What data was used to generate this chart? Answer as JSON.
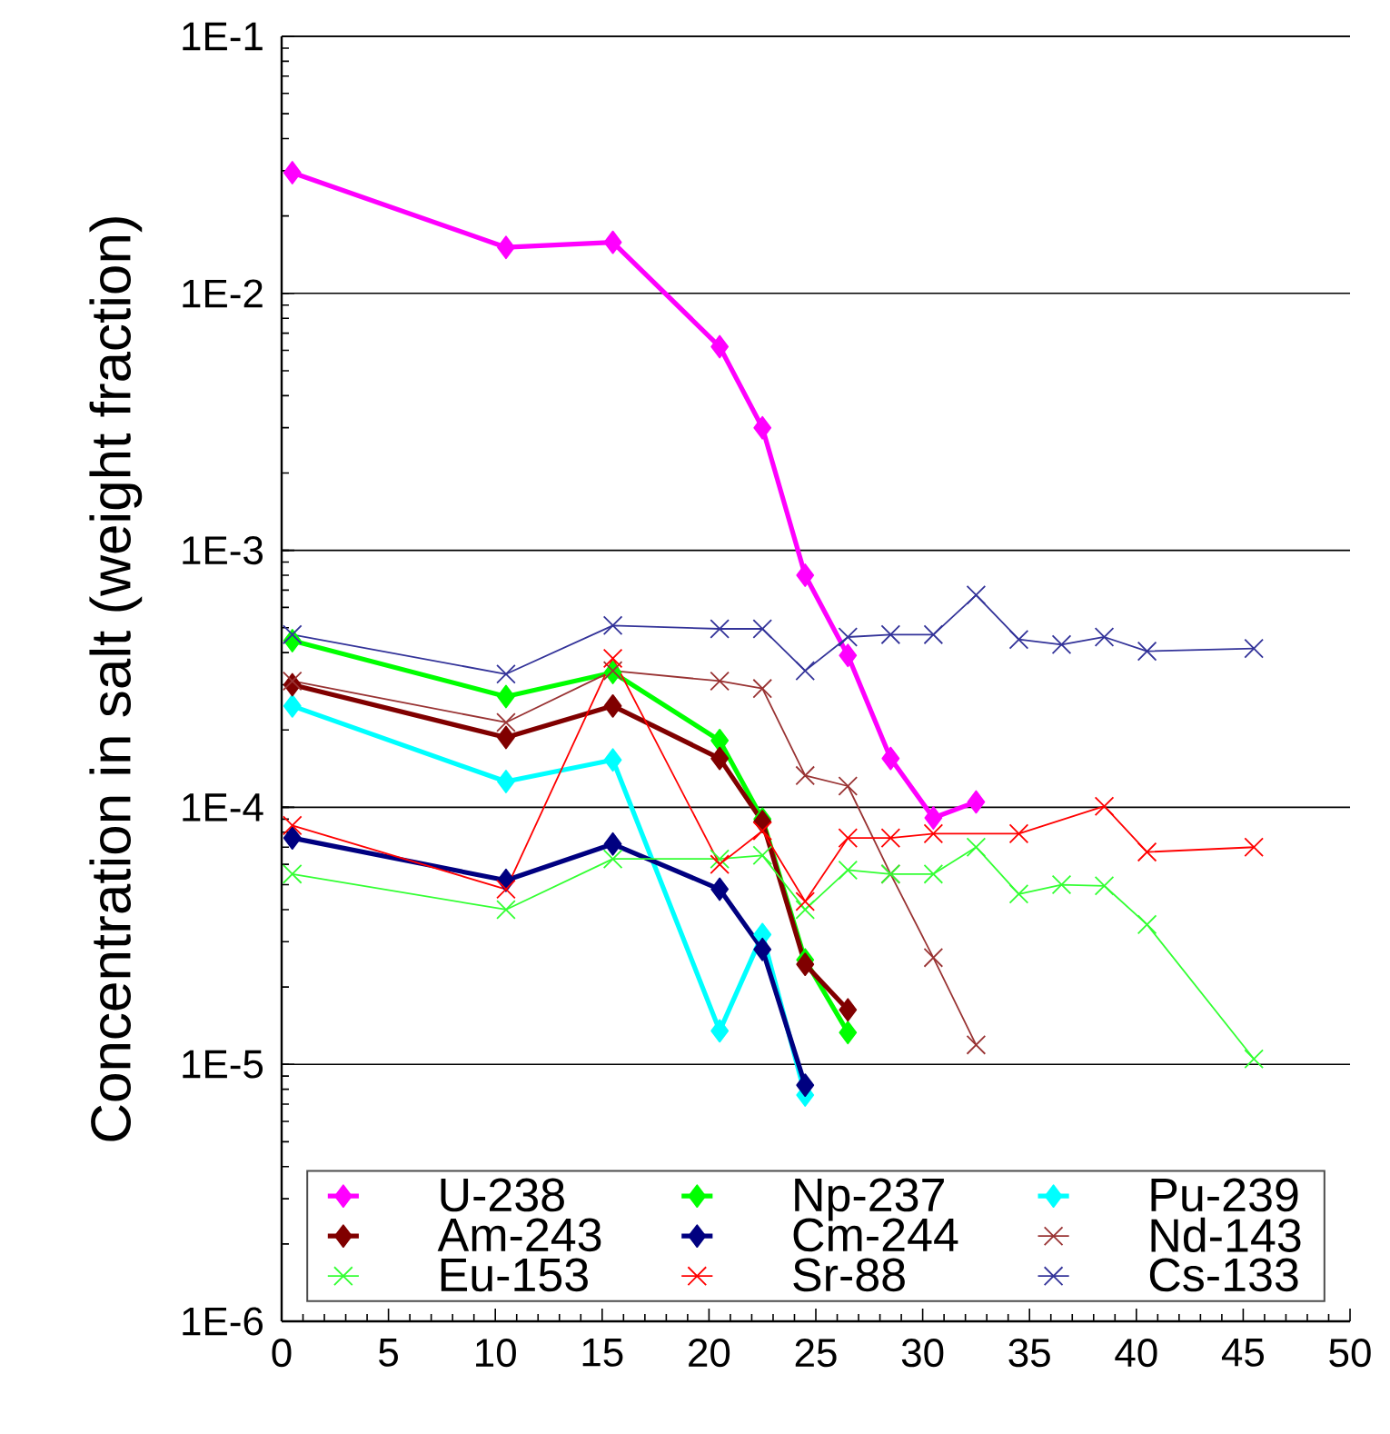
{
  "chart_data": {
    "type": "line",
    "ylabel": "Concentration in salt (weight fraction)",
    "log": "y",
    "grid": "y",
    "legend": "bottom",
    "xlim": [
      0,
      50
    ],
    "xticks": [
      0,
      5,
      10,
      15,
      20,
      25,
      30,
      35,
      40,
      45,
      50
    ],
    "ylim": [
      1e-06,
      0.1
    ],
    "yticks": [
      {
        "value": 1e-06,
        "label": "1E-6"
      },
      {
        "value": 1e-05,
        "label": "1E-5"
      },
      {
        "value": 0.0001,
        "label": "1E-4"
      },
      {
        "value": 0.001,
        "label": "1E-3"
      },
      {
        "value": 0.01,
        "label": "1E-2"
      },
      {
        "value": 0.1,
        "label": "1E-1"
      }
    ],
    "series": [
      {
        "name": "U-238",
        "color": "#ff00ff",
        "marker": "diamond",
        "x": [
          0.5,
          10.5,
          15.5,
          20.5,
          22.5,
          24.5,
          26.5,
          28.5,
          30.5,
          32.5
        ],
        "values": [
          0.0295,
          0.0151,
          0.0158,
          0.0062,
          0.003,
          0.0008,
          0.00039,
          0.000155,
          9.1e-05,
          0.000105
        ]
      },
      {
        "name": "Np-237",
        "color": "#00ff00",
        "marker": "diamond",
        "x": [
          0.5,
          10.5,
          15.5,
          20.5,
          22.5,
          24.5,
          26.5
        ],
        "values": [
          0.000445,
          0.00027,
          0.000335,
          0.000182,
          9e-05,
          2.55e-05,
          1.33e-05
        ]
      },
      {
        "name": "Pu-239",
        "color": "#00ffff",
        "marker": "diamond",
        "x": [
          0.5,
          10.5,
          15.5,
          20.5,
          22.5,
          24.5
        ],
        "values": [
          0.000248,
          0.000126,
          0.000153,
          1.35e-05,
          3.2e-05,
          7.6e-06
        ]
      },
      {
        "name": "Am-243",
        "color": "#800000",
        "marker": "diamond",
        "x": [
          0.5,
          10.5,
          15.5,
          20.5,
          22.5,
          24.5,
          26.5
        ],
        "values": [
          0.0003,
          0.000187,
          0.000248,
          0.000155,
          8.8e-05,
          2.45e-05,
          1.63e-05
        ]
      },
      {
        "name": "Cm-244",
        "color": "#000080",
        "marker": "diamond",
        "x": [
          0.5,
          10.5,
          15.5,
          20.5,
          22.5,
          24.5
        ],
        "values": [
          7.6e-05,
          5.2e-05,
          7.2e-05,
          4.8e-05,
          2.8e-05,
          8.3e-06
        ]
      },
      {
        "name": "Nd-143",
        "color": "#993333",
        "marker": "cross",
        "x": [
          0.5,
          10.5,
          15.5,
          20.5,
          22.5,
          24.5,
          26.5,
          28.5,
          30.5,
          32.5
        ],
        "values": [
          0.00031,
          0.000214,
          0.00034,
          0.00031,
          0.00029,
          0.000133,
          0.000121,
          5.5e-05,
          2.6e-05,
          1.19e-05
        ]
      },
      {
        "name": "Eu-153",
        "color": "#33ff33",
        "marker": "cross",
        "x": [
          0.5,
          10.5,
          15.5,
          20.5,
          22.5,
          24.5,
          26.5,
          28.5,
          30.5,
          32.5,
          34.5,
          36.5,
          38.5,
          40.5,
          45.5
        ],
        "values": [
          5.5e-05,
          4e-05,
          6.3e-05,
          6.3e-05,
          6.5e-05,
          4e-05,
          5.7e-05,
          5.5e-05,
          5.5e-05,
          7e-05,
          4.6e-05,
          5e-05,
          4.95e-05,
          3.5e-05,
          1.05e-05
        ]
      },
      {
        "name": "Sr-88",
        "color": "#ff0000",
        "marker": "cross",
        "x": [
          0.5,
          10.5,
          15.5,
          20.5,
          22.5,
          24.5,
          26.5,
          28.5,
          30.5,
          34.5,
          38.5,
          40.5,
          45.5
        ],
        "values": [
          8.5e-05,
          4.8e-05,
          0.00038,
          6e-05,
          8.1e-05,
          4.3e-05,
          7.6e-05,
          7.6e-05,
          7.9e-05,
          7.9e-05,
          0.000101,
          6.7e-05,
          7e-05
        ]
      },
      {
        "name": "Cs-133",
        "color": "#333399",
        "marker": "cross",
        "x": [
          0.5,
          10.5,
          15.5,
          20.5,
          22.5,
          24.5,
          26.5,
          28.5,
          30.5,
          32.5,
          34.5,
          36.5,
          38.5,
          40.5,
          45.5
        ],
        "values": [
          0.00047,
          0.00033,
          0.00051,
          0.000495,
          0.000495,
          0.00034,
          0.00046,
          0.00047,
          0.00047,
          0.00067,
          0.00045,
          0.00043,
          0.00046,
          0.000405,
          0.000415
        ]
      }
    ]
  }
}
